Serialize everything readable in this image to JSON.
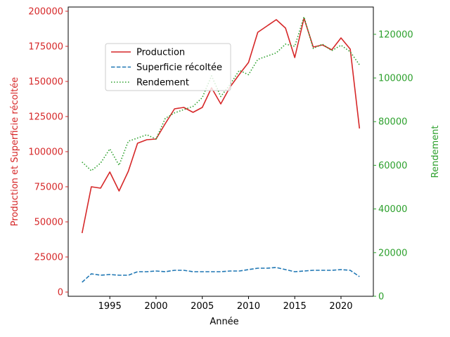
{
  "chart_data": {
    "type": "line",
    "title": "",
    "xlabel": "Année",
    "ylabel_left": "Production et Superficie récoltée",
    "ylabel_right": "Rendement",
    "x": [
      1992,
      1993,
      1994,
      1995,
      1996,
      1997,
      1998,
      1999,
      2000,
      2001,
      2002,
      2003,
      2004,
      2005,
      2006,
      2007,
      2008,
      2009,
      2010,
      2011,
      2012,
      2013,
      2014,
      2015,
      2016,
      2017,
      2018,
      2019,
      2020,
      2021,
      2022
    ],
    "xlim": [
      1990.5,
      2023.5
    ],
    "x_ticks": [
      1995,
      2000,
      2005,
      2010,
      2015,
      2020
    ],
    "ylim_left": [
      -3000,
      203000
    ],
    "y_ticks_left": [
      0,
      25000,
      50000,
      75000,
      100000,
      125000,
      150000,
      175000,
      200000
    ],
    "ylim_right": [
      0,
      132500
    ],
    "y_ticks_right": [
      0,
      20000,
      40000,
      60000,
      80000,
      100000,
      120000
    ],
    "left_axis_color": "#d62728",
    "right_axis_color": "#2ca02c",
    "legend_position": "upper-left",
    "series": [
      {
        "name": "Production",
        "axis": "left",
        "color": "#d62728",
        "style": "solid",
        "values": [
          42000,
          75000,
          74000,
          85500,
          72000,
          86000,
          106000,
          108500,
          109000,
          120000,
          130500,
          131500,
          128000,
          131500,
          145500,
          134000,
          146000,
          155000,
          163500,
          185000,
          189500,
          194000,
          188000,
          167000,
          195000,
          174500,
          176000,
          172500,
          181000,
          173000,
          116500
        ]
      },
      {
        "name": "Superficie récoltée",
        "axis": "left",
        "color": "#1f77b4",
        "style": "dashed",
        "values": [
          7000,
          13000,
          12000,
          12500,
          12000,
          12000,
          14500,
          14500,
          15000,
          14500,
          15500,
          15500,
          14500,
          14500,
          14500,
          14500,
          15000,
          15000,
          16000,
          17000,
          17000,
          17500,
          16000,
          14500,
          15000,
          15500,
          15500,
          15500,
          16000,
          15500,
          11000
        ]
      },
      {
        "name": "Rendement",
        "axis": "right",
        "color": "#2ca02c",
        "style": "dotted",
        "values": [
          61500,
          57500,
          61000,
          67500,
          60000,
          71000,
          72500,
          74000,
          72000,
          81500,
          84000,
          85500,
          87000,
          91000,
          101000,
          91500,
          97000,
          103500,
          101500,
          108500,
          110000,
          111500,
          115500,
          114500,
          128000,
          113500,
          115500,
          112500,
          115000,
          112000,
          106000
        ]
      }
    ]
  }
}
